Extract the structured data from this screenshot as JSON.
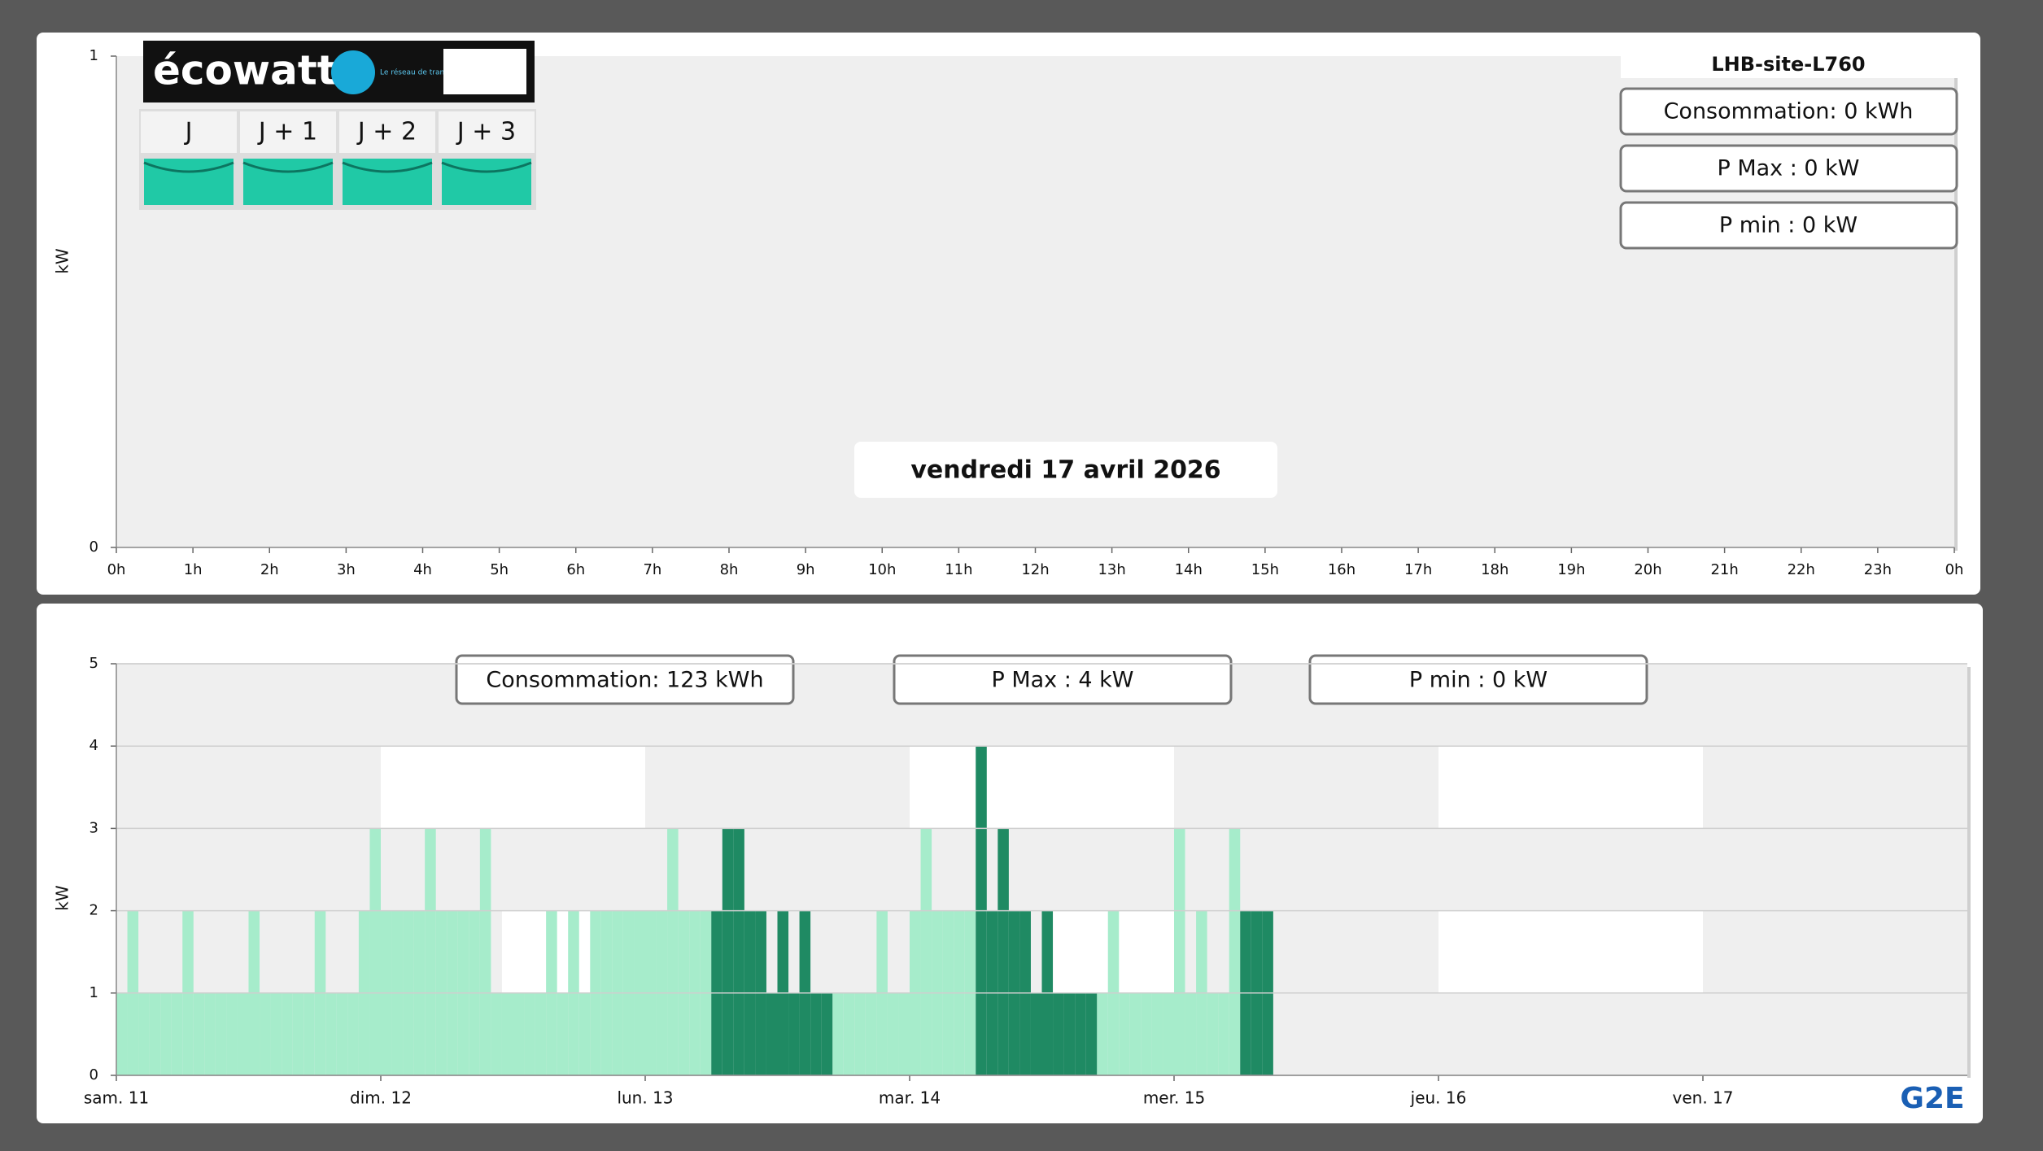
{
  "chart_data": [
    {
      "type": "line",
      "categories": [
        "0h",
        "1h",
        "2h",
        "3h",
        "4h",
        "5h",
        "6h",
        "7h",
        "8h",
        "9h",
        "10h",
        "11h",
        "12h",
        "13h",
        "14h",
        "15h",
        "16h",
        "17h",
        "18h",
        "19h",
        "20h",
        "21h",
        "22h",
        "23h",
        "0h"
      ],
      "ylim": [
        0,
        1
      ],
      "yticks": [
        0,
        1
      ],
      "y_label": "kW",
      "grid": false,
      "annotation": "vendredi 17 avril 2026",
      "site": "LHB-site-L760",
      "stats": [
        "Consommation: 0 kWh",
        "P Max :  0 kW",
        "P min : 0 kW"
      ],
      "ecowatt": {
        "logo": "écowatt",
        "rte": "Le réseau de transport d'électricité",
        "days": [
          "J",
          "J + 1",
          "J + 2",
          "J + 3"
        ]
      }
    },
    {
      "type": "bar",
      "x": [
        0,
        1,
        2,
        3,
        4,
        5,
        6,
        7,
        8,
        9,
        10,
        11,
        12,
        13,
        14,
        15,
        16,
        17,
        18,
        19,
        20,
        21,
        22,
        23,
        24,
        25,
        26,
        27,
        28,
        29,
        30,
        31,
        32,
        33,
        34,
        35,
        36,
        37,
        38,
        39,
        40,
        41,
        42,
        43,
        44,
        45,
        46,
        47,
        48,
        49,
        50,
        51,
        52,
        53,
        54,
        55,
        56,
        57,
        58,
        59,
        60,
        61,
        62,
        63,
        64,
        65,
        66,
        67,
        68,
        69,
        70,
        71,
        72,
        73,
        74,
        75,
        76,
        77,
        78,
        79,
        80,
        81,
        82,
        83,
        84,
        85,
        86,
        87,
        88,
        89,
        90,
        91,
        92,
        93,
        94,
        95,
        96,
        97,
        98,
        99,
        100,
        101,
        102,
        103,
        104
      ],
      "series": [
        {
          "color": "#a6eccb",
          "values": [
            1,
            2,
            1,
            1,
            1,
            1,
            2,
            1,
            1,
            1,
            1,
            1,
            2,
            1,
            1,
            1,
            1,
            1,
            2,
            1,
            1,
            1,
            2,
            3,
            2,
            2,
            2,
            2,
            3,
            2,
            2,
            2,
            2,
            3,
            1,
            1,
            1,
            1,
            1,
            2,
            1,
            2,
            1,
            2,
            2,
            2,
            2,
            2,
            2,
            2,
            3,
            2,
            2,
            2,
            null,
            null,
            null,
            null,
            null,
            null,
            null,
            null,
            null,
            null,
            null,
            1,
            1,
            1,
            1,
            2,
            1,
            1,
            2,
            3,
            2,
            2,
            2,
            2,
            null,
            null,
            null,
            null,
            null,
            null,
            null,
            null,
            null,
            null,
            null,
            1,
            2,
            1,
            1,
            1,
            1,
            1,
            3,
            1,
            2,
            1,
            1,
            3,
            null,
            null,
            null
          ]
        },
        {
          "color": "#1f8a63",
          "values": [
            null,
            null,
            null,
            null,
            null,
            null,
            null,
            null,
            null,
            null,
            null,
            null,
            null,
            null,
            null,
            null,
            null,
            null,
            null,
            null,
            null,
            null,
            null,
            null,
            null,
            null,
            null,
            null,
            null,
            null,
            null,
            null,
            null,
            null,
            null,
            null,
            null,
            null,
            null,
            null,
            null,
            null,
            null,
            null,
            null,
            null,
            null,
            null,
            null,
            null,
            null,
            null,
            null,
            null,
            2,
            3,
            3,
            2,
            2,
            1,
            2,
            1,
            2,
            1,
            1,
            null,
            null,
            null,
            null,
            null,
            null,
            null,
            null,
            null,
            null,
            null,
            null,
            null,
            4,
            2,
            3,
            2,
            2,
            1,
            2,
            1,
            1,
            1,
            1,
            null,
            null,
            null,
            null,
            null,
            null,
            null,
            null,
            null,
            null,
            null,
            null,
            null,
            2,
            2,
            2
          ]
        }
      ],
      "xlim": [
        0,
        168
      ],
      "xticks": [
        {
          "value": 0,
          "label": "sam. 11"
        },
        {
          "value": 24,
          "label": "dim. 12"
        },
        {
          "value": 48,
          "label": "lun. 13"
        },
        {
          "value": 72,
          "label": "mar. 14"
        },
        {
          "value": 96,
          "label": "mer. 15"
        },
        {
          "value": 120,
          "label": "jeu. 16"
        },
        {
          "value": 144,
          "label": "ven. 17"
        }
      ],
      "ylim": [
        0,
        5
      ],
      "yticks": [
        0,
        1,
        2,
        3,
        4,
        5
      ],
      "y_label": "kW",
      "grid": true,
      "stats": [
        "Consommation: 123 kWh",
        "P Max :  4 kW",
        "P min : 0 kW"
      ],
      "logo": "G2E"
    }
  ]
}
